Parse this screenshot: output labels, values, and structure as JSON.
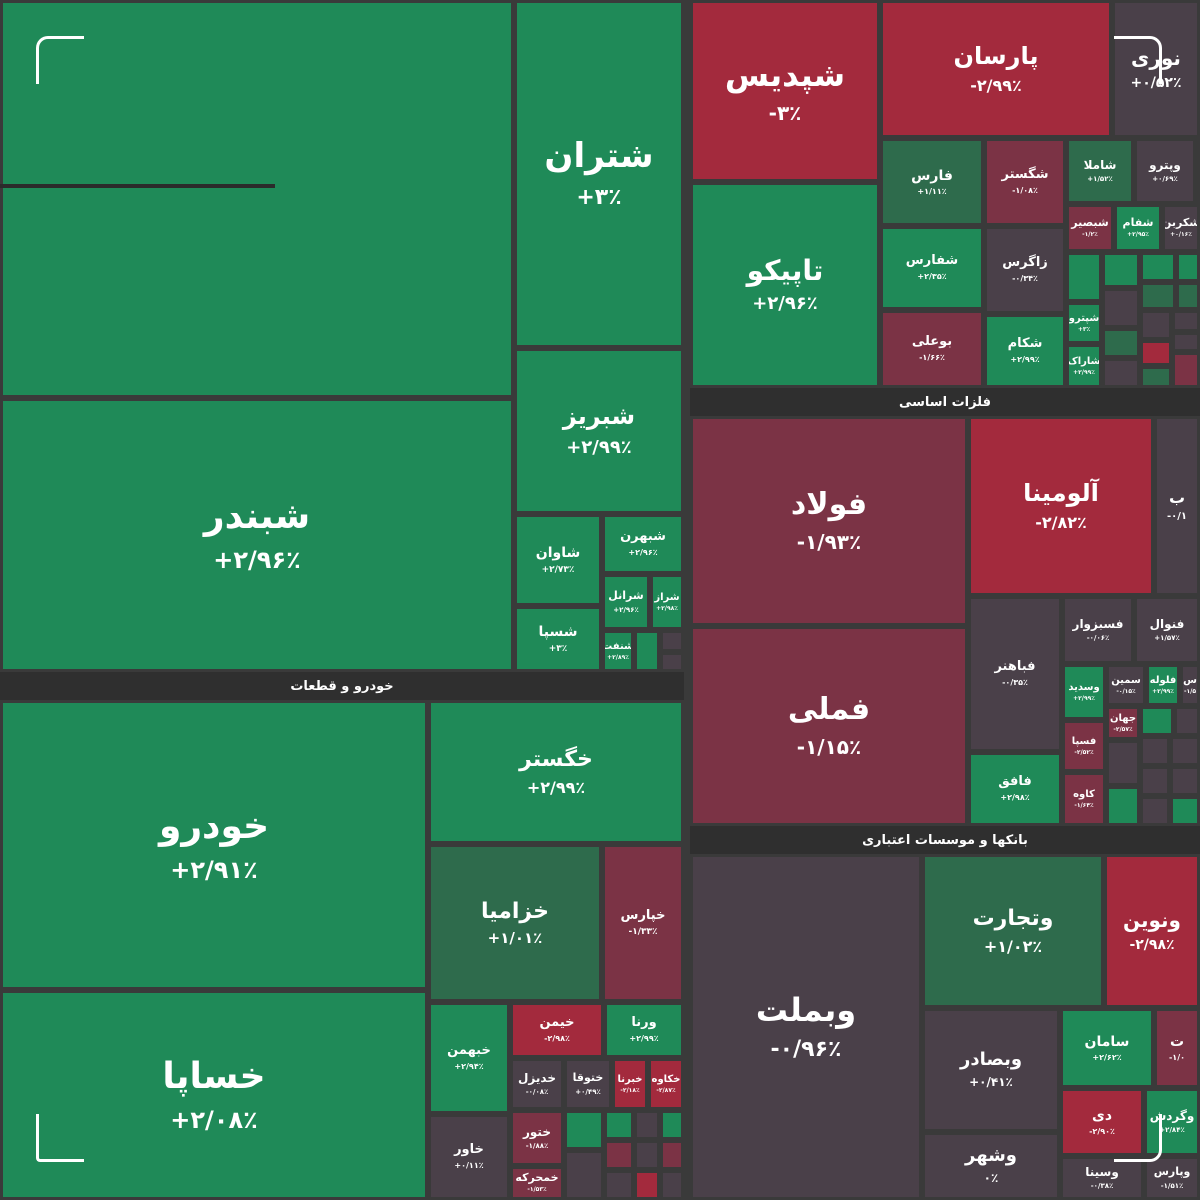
{
  "colors": {
    "green": "#1f8a58",
    "green_mid": "#2e6b4c",
    "red": "#a32a3d",
    "red_mid": "#7b3345",
    "neutral": "#4a4049",
    "background": "#3a3a3a"
  },
  "sectors": {
    "auto": "خودرو و قطعات",
    "metals": "فلزات اساسی",
    "banks": "بانکها و موسسات اعتباری"
  },
  "tiles": {
    "shbandar": {
      "symbol": "شبندر",
      "change": "+۲/۹۶٪"
    },
    "shetran": {
      "symbol": "شتران",
      "change": "+۳٪"
    },
    "shabriz": {
      "symbol": "شبریز",
      "change": "+۲/۹۹٪"
    },
    "shavan": {
      "symbol": "شاوان",
      "change": "+۲/۷۳٪"
    },
    "shahran": {
      "symbol": "شبهرن",
      "change": "+۲/۹۶٪"
    },
    "shesepa": {
      "symbol": "شسپا",
      "change": "+۳٪"
    },
    "sharanol": {
      "symbol": "شرانل",
      "change": "+۲/۹۶٪"
    },
    "sharaz": {
      "symbol": "شراز",
      "change": "+۲/۹۸٪"
    },
    "shenaft": {
      "symbol": "شنفت",
      "change": "+۲/۸۹٪"
    },
    "shepdis": {
      "symbol": "شپدیس",
      "change": "-۳٪"
    },
    "parsan": {
      "symbol": "پارسان",
      "change": "-۲/۹۹٪"
    },
    "nouri": {
      "symbol": "نوری",
      "change": "+۰/۵۲٪"
    },
    "tapiko": {
      "symbol": "تاپیکو",
      "change": "+۲/۹۶٪"
    },
    "fars": {
      "symbol": "فارس",
      "change": "+۱/۱۱٪"
    },
    "shegostar": {
      "symbol": "شگستر",
      "change": "-۱/۰۸٪"
    },
    "shamla": {
      "symbol": "شاملا",
      "change": "+۱/۵۲٪"
    },
    "vpetro": {
      "symbol": "وپترو",
      "change": "+۰/۶۹٪"
    },
    "shebasir": {
      "symbol": "شبصیر",
      "change": "-۱/۲٪"
    },
    "shefam": {
      "symbol": "شفام",
      "change": "+۲/۹۵٪"
    },
    "shekarbon": {
      "symbol": "شکربن",
      "change": "+۰/۱۶٪"
    },
    "shefaras": {
      "symbol": "شفارس",
      "change": "+۲/۳۵٪"
    },
    "zagros": {
      "symbol": "زاگرس",
      "change": "-۰/۳۴٪"
    },
    "boali": {
      "symbol": "بوعلی",
      "change": "-۱/۶۶٪"
    },
    "shekam": {
      "symbol": "شکام",
      "change": "+۲/۹۹٪"
    },
    "shepetro": {
      "symbol": "شپترو",
      "change": "+۳٪"
    },
    "sharak": {
      "symbol": "شاراک",
      "change": "+۲/۹۹٪"
    },
    "folad": {
      "symbol": "فولاد",
      "change": "-۱/۹۳٪"
    },
    "alumina": {
      "symbol": "آلومینا",
      "change": "-۲/۸۲٪"
    },
    "metals_b": {
      "symbol": "ب",
      "change": "-۰/۱"
    },
    "femeli": {
      "symbol": "فملی",
      "change": "-۱/۱۵٪"
    },
    "fesabzevar": {
      "symbol": "فسبزوار",
      "change": "-۰/۰۶٪"
    },
    "fenval": {
      "symbol": "فنوال",
      "change": "+۱/۵۷٪"
    },
    "febahonar": {
      "symbol": "فباهنر",
      "change": "-۰/۳۵٪"
    },
    "vesadid": {
      "symbol": "وسدید",
      "change": "+۲/۹۹٪"
    },
    "semin": {
      "symbol": "سمین",
      "change": "-۰/۱۵٪"
    },
    "faloole": {
      "symbol": "فلوله",
      "change": "+۲/۹۹٪"
    },
    "metals_s": {
      "symbol": "س",
      "change": "-۱/۵"
    },
    "jahan": {
      "symbol": "جهان",
      "change": "-۲/۵۷٪"
    },
    "fesepa": {
      "symbol": "فسپا",
      "change": "-۲/۵۲٪"
    },
    "faghaf": {
      "symbol": "فافق",
      "change": "+۲/۹۸٪"
    },
    "kave": {
      "symbol": "کاوه",
      "change": "-۱/۶۴٪"
    },
    "khodro": {
      "symbol": "خودرو",
      "change": "+۲/۹۱٪"
    },
    "khegostar": {
      "symbol": "خگستر",
      "change": "+۲/۹۹٪"
    },
    "khesapa": {
      "symbol": "خساپا",
      "change": "+۲/۰۸٪"
    },
    "khazamia": {
      "symbol": "خزامیا",
      "change": "+۱/۰۱٪"
    },
    "khepars": {
      "symbol": "خپارس",
      "change": "-۱/۳۳٪"
    },
    "khebahman": {
      "symbol": "خبهمن",
      "change": "+۲/۹۴٪"
    },
    "kheimen": {
      "symbol": "خیمن",
      "change": "-۲/۹۸٪"
    },
    "verena": {
      "symbol": "ورنا",
      "change": "+۲/۹۹٪"
    },
    "khodizel": {
      "symbol": "خدیزل",
      "change": "-۰/۰۸٪"
    },
    "khatoga": {
      "symbol": "ختوقا",
      "change": "+۰/۴۹٪"
    },
    "khebrena": {
      "symbol": "خبرنا",
      "change": "-۲/۱۸٪"
    },
    "khekave": {
      "symbol": "خکاوه",
      "change": "-۲/۸۷٪"
    },
    "khatoor": {
      "symbol": "ختور",
      "change": "-۱/۸۸٪"
    },
    "khavar": {
      "symbol": "خاور",
      "change": "+۰/۱۱٪"
    },
    "khemohareke": {
      "symbol": "خمحرکه",
      "change": "-۱/۵۳٪"
    },
    "vebmelat": {
      "symbol": "وبملت",
      "change": "-۰/۹۶٪"
    },
    "vetejarat": {
      "symbol": "وتجارت",
      "change": "+۱/۰۲٪"
    },
    "vanovin": {
      "symbol": "ونوین",
      "change": "-۲/۹۸٪"
    },
    "vebesader": {
      "symbol": "وبصادر",
      "change": "+۰/۴۱٪"
    },
    "saman": {
      "symbol": "سامان",
      "change": "+۲/۶۲٪"
    },
    "banks_t": {
      "symbol": "ت",
      "change": "-۱/۰"
    },
    "vesheher": {
      "symbol": "وشهر",
      "change": "۰٪"
    },
    "dey": {
      "symbol": "دی",
      "change": "-۲/۹۰٪"
    },
    "vegardesh": {
      "symbol": "وگردش",
      "change": "+۲/۸۴٪"
    },
    "vesina": {
      "symbol": "وسینا",
      "change": "-۰/۳۸٪"
    },
    "vparsi": {
      "symbol": "وپارس",
      "change": "-۱/۵۱٪"
    }
  },
  "minor_tile_count": 48
}
